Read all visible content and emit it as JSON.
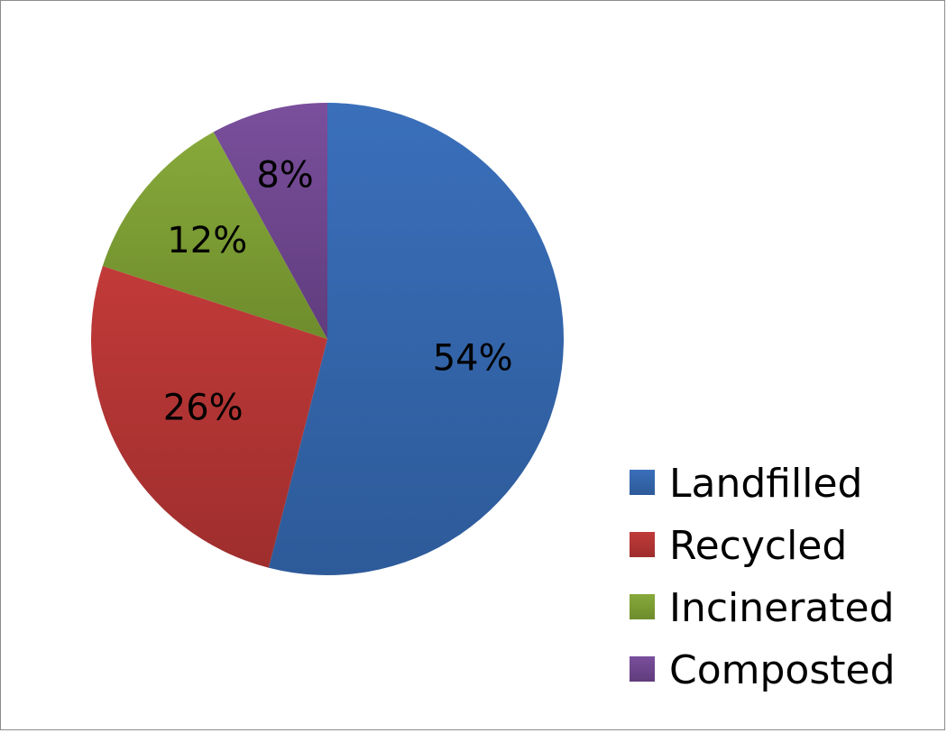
{
  "chart_data": {
    "type": "pie",
    "title": "",
    "categories": [
      "Landfilled",
      "Recycled",
      "Incinerated",
      "Composted"
    ],
    "values": [
      54,
      26,
      12,
      8
    ],
    "labels": [
      "54%",
      "26%",
      "12%",
      "8%"
    ],
    "colors": [
      "#3a6fba",
      "#c13a39",
      "#87a93a",
      "#7a4f9c"
    ],
    "colors_dark": [
      "#2d5a99",
      "#9e2e2d",
      "#6e8c2c",
      "#603c7d"
    ],
    "legend_position": "right-bottom",
    "start_angle_deg": 0,
    "direction": "clockwise"
  }
}
